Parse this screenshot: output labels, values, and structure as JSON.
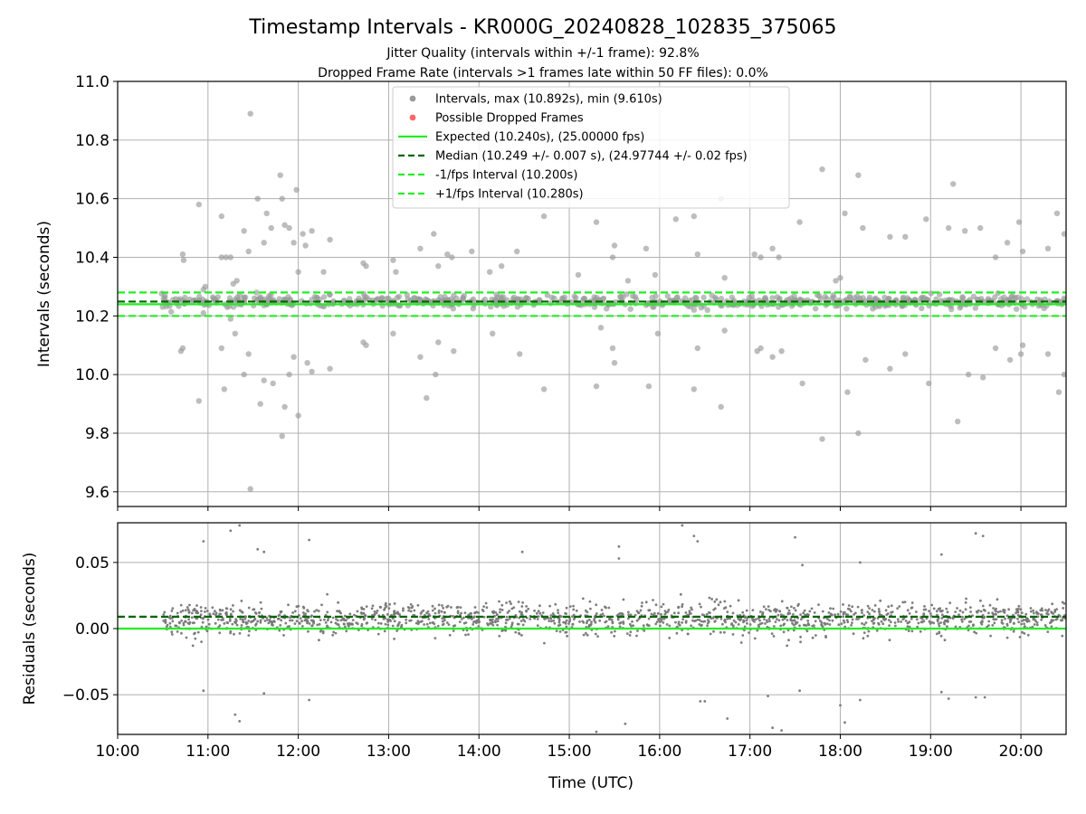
{
  "chart_data": [
    {
      "panel": "top",
      "type": "scatter",
      "title": "Timestamp Intervals - KR000G_20240828_102835_375065",
      "subtitle_lines": [
        "Jitter Quality (intervals within +/-1 frame): 92.8%",
        "Dropped Frame Rate (intervals >1 frames late within 50 FF files): 0.0%"
      ],
      "xlabel": "",
      "ylabel": "Intervals (seconds)",
      "ylim": [
        9.55,
        11.0
      ],
      "xlim_hours": [
        10.0,
        20.5
      ],
      "yticks": [
        9.6,
        9.8,
        10.0,
        10.2,
        10.4,
        10.6,
        10.8,
        11.0
      ],
      "ytick_labels": [
        "9.6",
        "9.8",
        "10.0",
        "10.2",
        "10.4",
        "10.6",
        "10.8",
        "11.0"
      ],
      "xticks_hours": [
        10,
        11,
        12,
        13,
        14,
        15,
        16,
        17,
        18,
        19,
        20
      ],
      "grid": true,
      "legend_placement": "upper-center",
      "legend": [
        {
          "label": "Intervals, max (10.892s), min (9.610s)",
          "kind": "marker",
          "color": "#999999"
        },
        {
          "label": "Possible Dropped Frames",
          "kind": "marker",
          "color": "#ff6666"
        },
        {
          "label": "Expected (10.240s), (25.00000 fps)",
          "kind": "solid",
          "color": "#22ee22"
        },
        {
          "label": "Median (10.249 +/- 0.007 s), (24.97744 +/- 0.02 fps)",
          "kind": "dashed",
          "color": "#006400"
        },
        {
          "label": "-1/fps Interval (10.200s)",
          "kind": "dashed",
          "color": "#22ee22"
        },
        {
          "label": "+1/fps Interval (10.280s)",
          "kind": "dashed",
          "color": "#22ee22"
        }
      ],
      "reference_lines": [
        {
          "name": "expected",
          "y": 10.24,
          "style": "solid",
          "color": "#22ee22"
        },
        {
          "name": "median",
          "y": 10.249,
          "style": "dashed",
          "color": "#006400"
        },
        {
          "name": "minus-one-frame",
          "y": 10.2,
          "style": "dashed",
          "color": "#22ee22"
        },
        {
          "name": "plus-one-frame",
          "y": 10.28,
          "style": "dashed",
          "color": "#22ee22"
        }
      ],
      "series": [
        {
          "name": "Intervals",
          "color": "#999999",
          "cluster": {
            "x_range": [
              10.48,
              20.5
            ],
            "y_center": 10.249,
            "y_spread": 0.02,
            "count": 700
          },
          "outliers": [
            [
              10.72,
              10.41
            ],
            [
              10.73,
              10.39
            ],
            [
              10.7,
              10.08
            ],
            [
              10.72,
              10.09
            ],
            [
              10.9,
              10.58
            ],
            [
              10.9,
              9.91
            ],
            [
              10.95,
              10.29
            ],
            [
              10.97,
              10.3
            ],
            [
              10.95,
              10.21
            ],
            [
              11.15,
              10.54
            ],
            [
              11.15,
              10.4
            ],
            [
              11.2,
              10.4
            ],
            [
              11.25,
              10.4
            ],
            [
              11.15,
              10.09
            ],
            [
              11.18,
              9.95
            ],
            [
              11.25,
              10.19
            ],
            [
              11.3,
              10.14
            ],
            [
              11.32,
              10.32
            ],
            [
              11.28,
              10.31
            ],
            [
              11.4,
              10.49
            ],
            [
              11.4,
              10.0
            ],
            [
              11.45,
              10.42
            ],
            [
              11.45,
              10.07
            ],
            [
              11.47,
              10.89
            ],
            [
              11.47,
              9.61
            ],
            [
              11.55,
              10.6
            ],
            [
              11.58,
              9.9
            ],
            [
              11.62,
              10.45
            ],
            [
              11.62,
              9.98
            ],
            [
              11.65,
              10.55
            ],
            [
              11.7,
              10.5
            ],
            [
              11.72,
              9.97
            ],
            [
              11.8,
              10.68
            ],
            [
              11.82,
              10.6
            ],
            [
              11.82,
              9.79
            ],
            [
              11.85,
              10.51
            ],
            [
              11.85,
              9.89
            ],
            [
              11.9,
              10.5
            ],
            [
              11.9,
              10.0
            ],
            [
              11.95,
              10.45
            ],
            [
              11.95,
              10.06
            ],
            [
              11.98,
              10.63
            ],
            [
              12.0,
              9.86
            ],
            [
              12.0,
              10.35
            ],
            [
              12.05,
              10.48
            ],
            [
              12.08,
              10.44
            ],
            [
              12.1,
              10.04
            ],
            [
              12.15,
              10.49
            ],
            [
              12.15,
              10.01
            ],
            [
              12.28,
              10.35
            ],
            [
              12.35,
              10.46
            ],
            [
              12.35,
              10.02
            ],
            [
              12.72,
              10.38
            ],
            [
              12.72,
              10.11
            ],
            [
              12.75,
              10.37
            ],
            [
              12.75,
              10.1
            ],
            [
              13.05,
              10.39
            ],
            [
              13.05,
              10.14
            ],
            [
              13.08,
              10.35
            ],
            [
              13.35,
              10.43
            ],
            [
              13.35,
              10.06
            ],
            [
              13.42,
              9.92
            ],
            [
              13.5,
              10.48
            ],
            [
              13.52,
              10.0
            ],
            [
              13.55,
              10.37
            ],
            [
              13.55,
              10.11
            ],
            [
              13.65,
              10.41
            ],
            [
              13.7,
              10.4
            ],
            [
              13.72,
              10.08
            ],
            [
              13.92,
              10.42
            ],
            [
              14.12,
              10.35
            ],
            [
              14.15,
              10.14
            ],
            [
              14.25,
              10.37
            ],
            [
              14.42,
              10.42
            ],
            [
              14.45,
              10.07
            ],
            [
              14.72,
              10.54
            ],
            [
              14.72,
              9.95
            ],
            [
              15.1,
              10.34
            ],
            [
              15.3,
              10.52
            ],
            [
              15.3,
              9.96
            ],
            [
              15.35,
              10.16
            ],
            [
              15.48,
              10.4
            ],
            [
              15.48,
              10.09
            ],
            [
              15.5,
              10.44
            ],
            [
              15.5,
              10.04
            ],
            [
              15.65,
              10.32
            ],
            [
              15.85,
              10.43
            ],
            [
              15.88,
              9.96
            ],
            [
              15.95,
              10.34
            ],
            [
              15.98,
              10.14
            ],
            [
              16.18,
              10.53
            ],
            [
              16.38,
              10.54
            ],
            [
              16.38,
              9.95
            ],
            [
              16.42,
              10.41
            ],
            [
              16.42,
              10.09
            ],
            [
              16.68,
              10.6
            ],
            [
              16.68,
              9.89
            ],
            [
              16.72,
              10.33
            ],
            [
              16.72,
              10.15
            ],
            [
              17.05,
              10.41
            ],
            [
              17.08,
              10.08
            ],
            [
              17.12,
              10.4
            ],
            [
              17.12,
              10.09
            ],
            [
              17.25,
              10.43
            ],
            [
              17.25,
              10.06
            ],
            [
              17.32,
              10.4
            ],
            [
              17.35,
              10.08
            ],
            [
              17.55,
              10.52
            ],
            [
              17.58,
              9.97
            ],
            [
              17.8,
              10.7
            ],
            [
              17.8,
              9.78
            ],
            [
              17.95,
              10.32
            ],
            [
              18.0,
              10.33
            ],
            [
              18.05,
              10.55
            ],
            [
              18.08,
              9.94
            ],
            [
              18.2,
              10.68
            ],
            [
              18.2,
              9.8
            ],
            [
              18.25,
              10.5
            ],
            [
              18.28,
              10.05
            ],
            [
              18.55,
              10.47
            ],
            [
              18.55,
              10.02
            ],
            [
              18.72,
              10.47
            ],
            [
              18.72,
              10.07
            ],
            [
              18.95,
              10.53
            ],
            [
              18.98,
              9.97
            ],
            [
              19.2,
              10.5
            ],
            [
              19.25,
              10.65
            ],
            [
              19.3,
              9.84
            ],
            [
              19.38,
              10.49
            ],
            [
              19.42,
              10.0
            ],
            [
              19.55,
              10.5
            ],
            [
              19.58,
              9.99
            ],
            [
              19.72,
              10.4
            ],
            [
              19.72,
              10.09
            ],
            [
              19.85,
              10.45
            ],
            [
              19.88,
              10.05
            ],
            [
              19.98,
              10.52
            ],
            [
              20.0,
              10.07
            ],
            [
              20.02,
              10.42
            ],
            [
              20.02,
              10.1
            ],
            [
              20.3,
              10.43
            ],
            [
              20.3,
              10.07
            ],
            [
              20.4,
              10.55
            ],
            [
              20.42,
              9.94
            ],
            [
              20.48,
              10.48
            ],
            [
              20.48,
              10.0
            ]
          ]
        }
      ]
    },
    {
      "panel": "bottom",
      "type": "scatter",
      "xlabel": "Time (UTC)",
      "ylabel": "Residuals (seconds)",
      "ylim": [
        -0.08,
        0.08
      ],
      "xlim_hours": [
        10.0,
        20.5
      ],
      "yticks": [
        -0.05,
        0.0,
        0.05
      ],
      "ytick_labels": [
        "−0.05",
        "0.00",
        "0.05"
      ],
      "xticks_hours": [
        10,
        11,
        12,
        13,
        14,
        15,
        16,
        17,
        18,
        19,
        20
      ],
      "xtick_labels": [
        "10:00",
        "11:00",
        "12:00",
        "13:00",
        "14:00",
        "15:00",
        "16:00",
        "17:00",
        "18:00",
        "19:00",
        "20:00"
      ],
      "grid": true,
      "reference_lines": [
        {
          "name": "zero",
          "y": 0.0,
          "style": "solid",
          "color": "#22ee22"
        },
        {
          "name": "median-offset",
          "y": 0.009,
          "style": "dashed",
          "color": "#006400"
        }
      ],
      "series": [
        {
          "name": "Residuals",
          "color": "#777777",
          "cluster": {
            "x_range": [
              10.5,
              20.5
            ],
            "y_center": 0.007,
            "y_spread": 0.012,
            "count": 1600
          },
          "outliers": [
            [
              10.95,
              0.066
            ],
            [
              10.95,
              -0.047
            ],
            [
              11.25,
              0.074
            ],
            [
              11.35,
              0.078
            ],
            [
              11.3,
              -0.065
            ],
            [
              11.35,
              -0.07
            ],
            [
              11.55,
              0.06
            ],
            [
              11.62,
              0.058
            ],
            [
              11.62,
              -0.049
            ],
            [
              12.12,
              0.067
            ],
            [
              12.12,
              -0.054
            ],
            [
              14.48,
              0.058
            ],
            [
              15.3,
              -0.078
            ],
            [
              15.55,
              0.062
            ],
            [
              15.55,
              0.053
            ],
            [
              15.62,
              -0.072
            ],
            [
              16.25,
              0.078
            ],
            [
              16.38,
              0.07
            ],
            [
              16.42,
              0.066
            ],
            [
              16.45,
              -0.055
            ],
            [
              16.5,
              -0.055
            ],
            [
              16.75,
              -0.068
            ],
            [
              17.2,
              -0.051
            ],
            [
              17.25,
              -0.075
            ],
            [
              17.35,
              -0.077
            ],
            [
              17.5,
              0.069
            ],
            [
              17.55,
              -0.047
            ],
            [
              17.58,
              0.048
            ],
            [
              18.0,
              -0.058
            ],
            [
              18.05,
              -0.071
            ],
            [
              18.22,
              0.05
            ],
            [
              18.22,
              -0.054
            ],
            [
              19.12,
              0.056
            ],
            [
              19.12,
              -0.048
            ],
            [
              19.2,
              -0.053
            ],
            [
              19.5,
              0.072
            ],
            [
              19.58,
              0.07
            ],
            [
              19.5,
              -0.052
            ],
            [
              19.6,
              -0.052
            ]
          ]
        }
      ]
    }
  ]
}
